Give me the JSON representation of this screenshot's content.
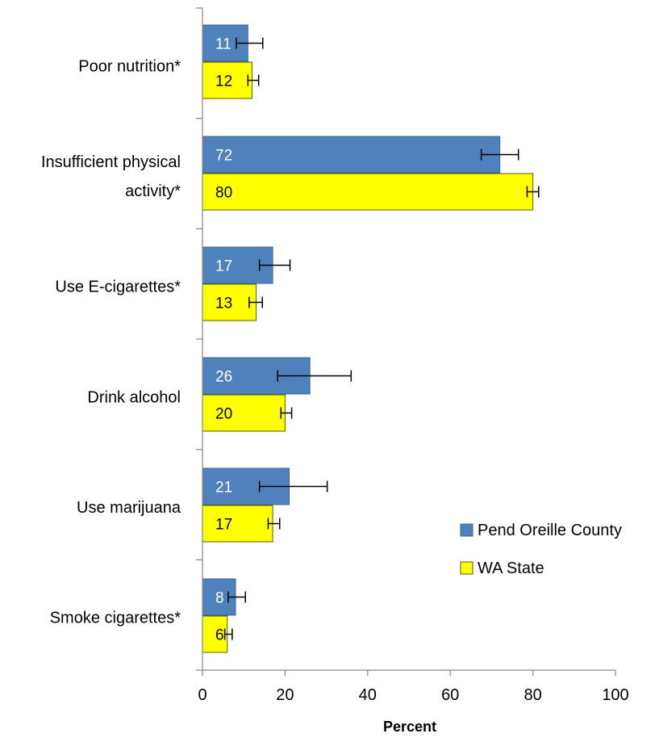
{
  "chart_data": {
    "type": "bar",
    "orientation": "horizontal",
    "categories": [
      "Poor nutrition*",
      "Insufficient physical activity*",
      "Use E-cigarettes*",
      "Drink alcohol",
      "Use marijuana",
      "Smoke cigarettes*"
    ],
    "category_lines": [
      [
        "Poor nutrition*"
      ],
      [
        "Insufficient physical",
        "activity*"
      ],
      [
        "Use E-cigarettes*"
      ],
      [
        "Drink alcohol"
      ],
      [
        "Use marijuana"
      ],
      [
        "Smoke cigarettes*"
      ]
    ],
    "series": [
      {
        "name": "Pend Oreille County",
        "color": "#4F81BD",
        "label_color": "#ffffff",
        "values": [
          11,
          72,
          17,
          26,
          21,
          8
        ],
        "error_low": [
          8.2,
          67.5,
          13.8,
          18.2,
          13.8,
          6.2
        ],
        "error_high": [
          14.6,
          76.5,
          21.2,
          36.0,
          30.2,
          10.4
        ]
      },
      {
        "name": "WA State",
        "color": "#FFFF00",
        "label_color": "#000000",
        "values": [
          12,
          80,
          13,
          20,
          17,
          6
        ],
        "error_low": [
          11.0,
          78.6,
          11.3,
          19.0,
          15.9,
          5.4
        ],
        "error_high": [
          13.6,
          81.4,
          14.5,
          21.6,
          18.7,
          7.2
        ]
      }
    ],
    "xlabel": "Percent",
    "xlim": [
      0,
      100
    ],
    "xticks": [
      0,
      20,
      40,
      60,
      80,
      100
    ],
    "legend_position": "bottom-right",
    "grid": false
  }
}
